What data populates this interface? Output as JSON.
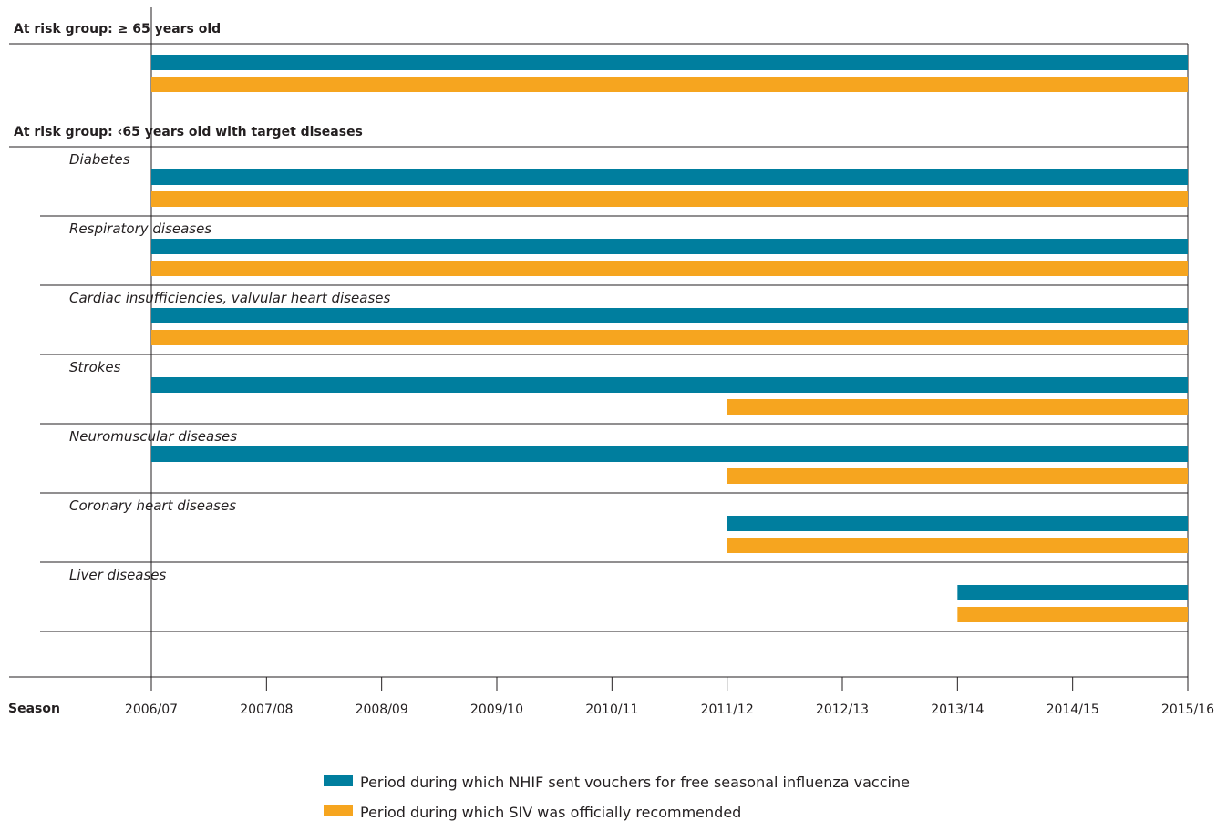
{
  "chart_data": {
    "type": "bar",
    "subtype": "timeline-gantt",
    "xlabel": "Season",
    "x_ticks": [
      "2006/07",
      "2007/08",
      "2008/09",
      "2009/10",
      "2010/11",
      "2011/12",
      "2012/13",
      "2013/14",
      "2014/15",
      "2015/16"
    ],
    "xlim": [
      "2006/07",
      "2015/16"
    ],
    "legend_placement": "bottom-center",
    "series": [
      {
        "key": "nhif",
        "name": "Period during which NHIF sent vouchers for free seasonal influenza vaccine",
        "color": "#007e9e"
      },
      {
        "key": "siv",
        "name": "Period during which SIV was officially recommended",
        "color": "#f6a51f"
      }
    ],
    "groups": [
      {
        "label": "At risk group: ≥ 65 years old",
        "rows": [
          {
            "label": "",
            "nhif": [
              "2006/07",
              "2015/16"
            ],
            "siv": [
              "2006/07",
              "2015/16"
            ]
          }
        ]
      },
      {
        "label": "At risk group: ‹65 years old with target diseases",
        "rows": [
          {
            "label": "Diabetes",
            "nhif": [
              "2006/07",
              "2015/16"
            ],
            "siv": [
              "2006/07",
              "2015/16"
            ]
          },
          {
            "label": "Respiratory diseases",
            "nhif": [
              "2006/07",
              "2015/16"
            ],
            "siv": [
              "2006/07",
              "2015/16"
            ]
          },
          {
            "label": "Cardiac insufficiencies, valvular heart diseases",
            "nhif": [
              "2006/07",
              "2015/16"
            ],
            "siv": [
              "2006/07",
              "2015/16"
            ]
          },
          {
            "label": "Strokes",
            "nhif": [
              "2006/07",
              "2015/16"
            ],
            "siv": [
              "2011/12",
              "2015/16"
            ]
          },
          {
            "label": "Neuromuscular diseases",
            "nhif": [
              "2006/07",
              "2015/16"
            ],
            "siv": [
              "2011/12",
              "2015/16"
            ]
          },
          {
            "label": "Coronary heart diseases",
            "nhif": [
              "2011/12",
              "2015/16"
            ],
            "siv": [
              "2011/12",
              "2015/16"
            ]
          },
          {
            "label": "Liver diseases",
            "nhif": [
              "2013/14",
              "2015/16"
            ],
            "siv": [
              "2013/14",
              "2015/16"
            ]
          }
        ]
      }
    ]
  }
}
